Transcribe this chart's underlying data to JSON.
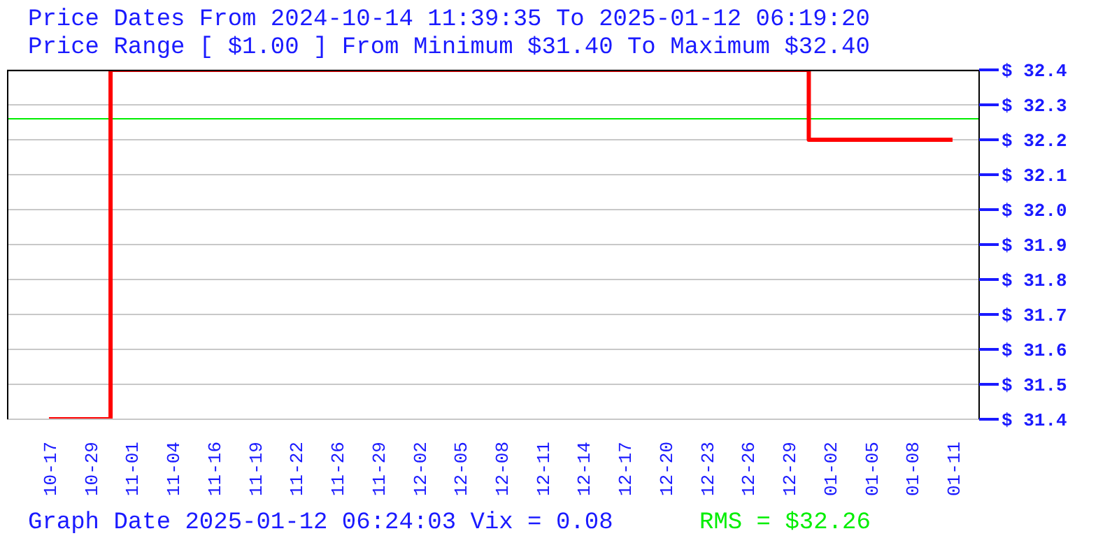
{
  "chart_data": {
    "type": "step",
    "title": "Price Dates From 2024-10-14 11:39:35 To 2025-01-12 06:19:20",
    "subtitle": "Price Range [ $1.00 ] From Minimum $31.40 To Maximum $32.40",
    "categories": [
      "10-17",
      "10-29",
      "11-01",
      "11-04",
      "11-16",
      "11-19",
      "11-22",
      "11-26",
      "11-29",
      "12-02",
      "12-05",
      "12-08",
      "12-11",
      "12-14",
      "12-17",
      "12-20",
      "12-23",
      "12-26",
      "12-29",
      "01-02",
      "01-05",
      "01-08",
      "01-11"
    ],
    "series": [
      {
        "color": "#ff0000",
        "values": [
          31.4,
          31.4,
          32.4,
          32.4,
          32.4,
          32.4,
          32.4,
          32.4,
          32.4,
          32.4,
          32.4,
          32.4,
          32.4,
          32.4,
          32.4,
          32.4,
          32.4,
          32.4,
          32.4,
          32.2,
          32.2,
          32.2,
          32.2
        ]
      }
    ],
    "ylim": [
      31.4,
      32.4
    ],
    "yticks": [
      {
        "value": 31.4,
        "label": "$ 31.4"
      },
      {
        "value": 31.5,
        "label": "$ 31.5"
      },
      {
        "value": 31.6,
        "label": "$ 31.6"
      },
      {
        "value": 31.7,
        "label": "$ 31.7"
      },
      {
        "value": 31.8,
        "label": "$ 31.8"
      },
      {
        "value": 31.9,
        "label": "$ 31.9"
      },
      {
        "value": 32.0,
        "label": "$ 32.0"
      },
      {
        "value": 32.1,
        "label": "$ 32.1"
      },
      {
        "value": 32.2,
        "label": "$ 32.2"
      },
      {
        "value": 32.3,
        "label": "$ 32.3"
      },
      {
        "value": 32.4,
        "label": "$ 32.4"
      }
    ],
    "grid": "y",
    "legend": false,
    "marker": "none",
    "ref_lines": [
      {
        "axis": "y",
        "value": 32.26,
        "label": "RMS = $32.26",
        "color": "#00ee00"
      }
    ],
    "annotations": [
      "Graph Date 2025-01-12 06:24:03 Vix = 0.08"
    ]
  }
}
